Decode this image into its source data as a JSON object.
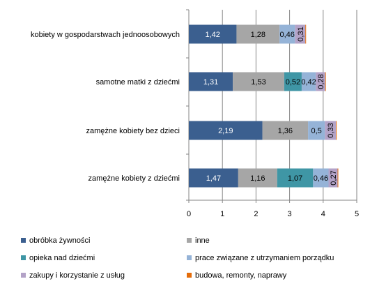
{
  "chart_data": {
    "type": "bar",
    "orientation": "horizontal",
    "stacked": true,
    "categories": [
      "kobiety w gospodarstwach jednoosobowych",
      "samotne matki z dziećmi",
      "zamężne kobiety bez dzieci",
      "zamężne kobiety z dziećmi"
    ],
    "series": [
      {
        "name": "obróbka żywności",
        "color": "#3B5F8F",
        "values": [
          1.42,
          1.31,
          2.19,
          1.47
        ],
        "labels": [
          "1,42",
          "1,31",
          "2,19",
          "1,47"
        ]
      },
      {
        "name": "inne",
        "color": "#A6A6A6",
        "values": [
          1.28,
          1.53,
          1.36,
          1.16
        ],
        "labels": [
          "1,28",
          "1,53",
          "1,36",
          "1,16"
        ]
      },
      {
        "name": "opieka nad dziećmi",
        "color": "#3F96A5",
        "values": [
          0,
          0.52,
          0,
          1.07
        ],
        "labels": [
          "",
          "0,52",
          "",
          "1,07"
        ]
      },
      {
        "name": "prace związane z utrzymaniem porządku",
        "color": "#95B3D7",
        "values": [
          0.46,
          0.42,
          0.5,
          0.46
        ],
        "labels": [
          "0,46",
          "0,42",
          "0,5",
          "0,46"
        ]
      },
      {
        "name": "zakupy i korzystanie z usług",
        "color": "#B3A2C7",
        "values": [
          0.31,
          0.28,
          0.33,
          0.27
        ],
        "labels": [
          "0,31",
          "0,28",
          "0,33",
          "0,27"
        ]
      },
      {
        "name": "budowa, remonty, naprawy",
        "color": "#E46C0A",
        "values": [
          0.02,
          0.02,
          0.02,
          0.02
        ],
        "labels": [
          "",
          "",
          "",
          ""
        ]
      }
    ],
    "xlim": [
      0,
      5
    ],
    "xticks": [
      "0",
      "1",
      "2",
      "3",
      "4",
      "5"
    ],
    "grid": true,
    "legend_position": "bottom"
  }
}
